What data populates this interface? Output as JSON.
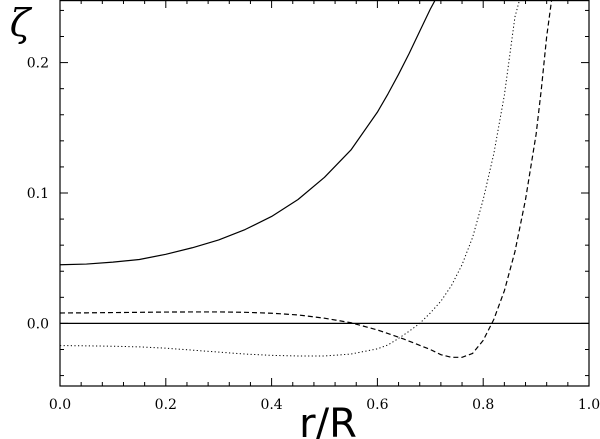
{
  "chart_data": {
    "type": "line",
    "title": "",
    "xlabel": "r/R",
    "ylabel": "ζ",
    "xlim": [
      0.0,
      1.0
    ],
    "ylim": [
      -0.048,
      0.248
    ],
    "xticks": [
      0.0,
      0.2,
      0.4,
      0.6,
      0.8,
      1.0
    ],
    "xtick_labels": [
      "0.0",
      "0.2",
      "0.4",
      "0.6",
      "0.8",
      "1.0"
    ],
    "yticks": [
      0.0,
      0.1,
      0.2
    ],
    "ytick_labels": [
      "0.0",
      "0.1",
      "0.2"
    ],
    "grid": false,
    "legend": "none",
    "reference_line": {
      "y": 0.0
    },
    "series": [
      {
        "style": "solid",
        "x": [
          0.0,
          0.05,
          0.1,
          0.15,
          0.2,
          0.25,
          0.3,
          0.35,
          0.4,
          0.45,
          0.5,
          0.55,
          0.6,
          0.62,
          0.64,
          0.66,
          0.68,
          0.7,
          0.712
        ],
        "y": [
          0.045,
          0.0455,
          0.047,
          0.049,
          0.053,
          0.058,
          0.064,
          0.072,
          0.082,
          0.095,
          0.112,
          0.133,
          0.162,
          0.176,
          0.191,
          0.207,
          0.224,
          0.241,
          0.25
        ]
      },
      {
        "style": "dotted",
        "x": [
          0.0,
          0.05,
          0.1,
          0.15,
          0.2,
          0.25,
          0.3,
          0.35,
          0.4,
          0.45,
          0.5,
          0.55,
          0.6,
          0.62,
          0.64,
          0.66,
          0.68,
          0.7,
          0.72,
          0.74,
          0.76,
          0.78,
          0.8,
          0.82,
          0.84,
          0.85,
          0.86,
          0.87
        ],
        "y": [
          -0.017,
          -0.0172,
          -0.0175,
          -0.018,
          -0.019,
          -0.0205,
          -0.022,
          -0.0235,
          -0.0245,
          -0.025,
          -0.025,
          -0.0235,
          -0.0195,
          -0.0165,
          -0.0115,
          -0.006,
          0.0,
          0.008,
          0.017,
          0.029,
          0.045,
          0.066,
          0.095,
          0.13,
          0.175,
          0.205,
          0.235,
          0.25
        ]
      },
      {
        "style": "dashed",
        "x": [
          0.0,
          0.05,
          0.1,
          0.15,
          0.2,
          0.25,
          0.3,
          0.35,
          0.4,
          0.45,
          0.5,
          0.55,
          0.6,
          0.65,
          0.7,
          0.72,
          0.74,
          0.76,
          0.78,
          0.8,
          0.82,
          0.84,
          0.86,
          0.88,
          0.9,
          0.91,
          0.92,
          0.93
        ],
        "y": [
          0.008,
          0.0081,
          0.0083,
          0.0085,
          0.0087,
          0.0088,
          0.0088,
          0.0085,
          0.0078,
          0.0065,
          0.004,
          0.0005,
          -0.005,
          -0.012,
          -0.02,
          -0.024,
          -0.026,
          -0.026,
          -0.023,
          -0.013,
          0.003,
          0.025,
          0.055,
          0.095,
          0.145,
          0.18,
          0.22,
          0.25
        ]
      }
    ]
  }
}
